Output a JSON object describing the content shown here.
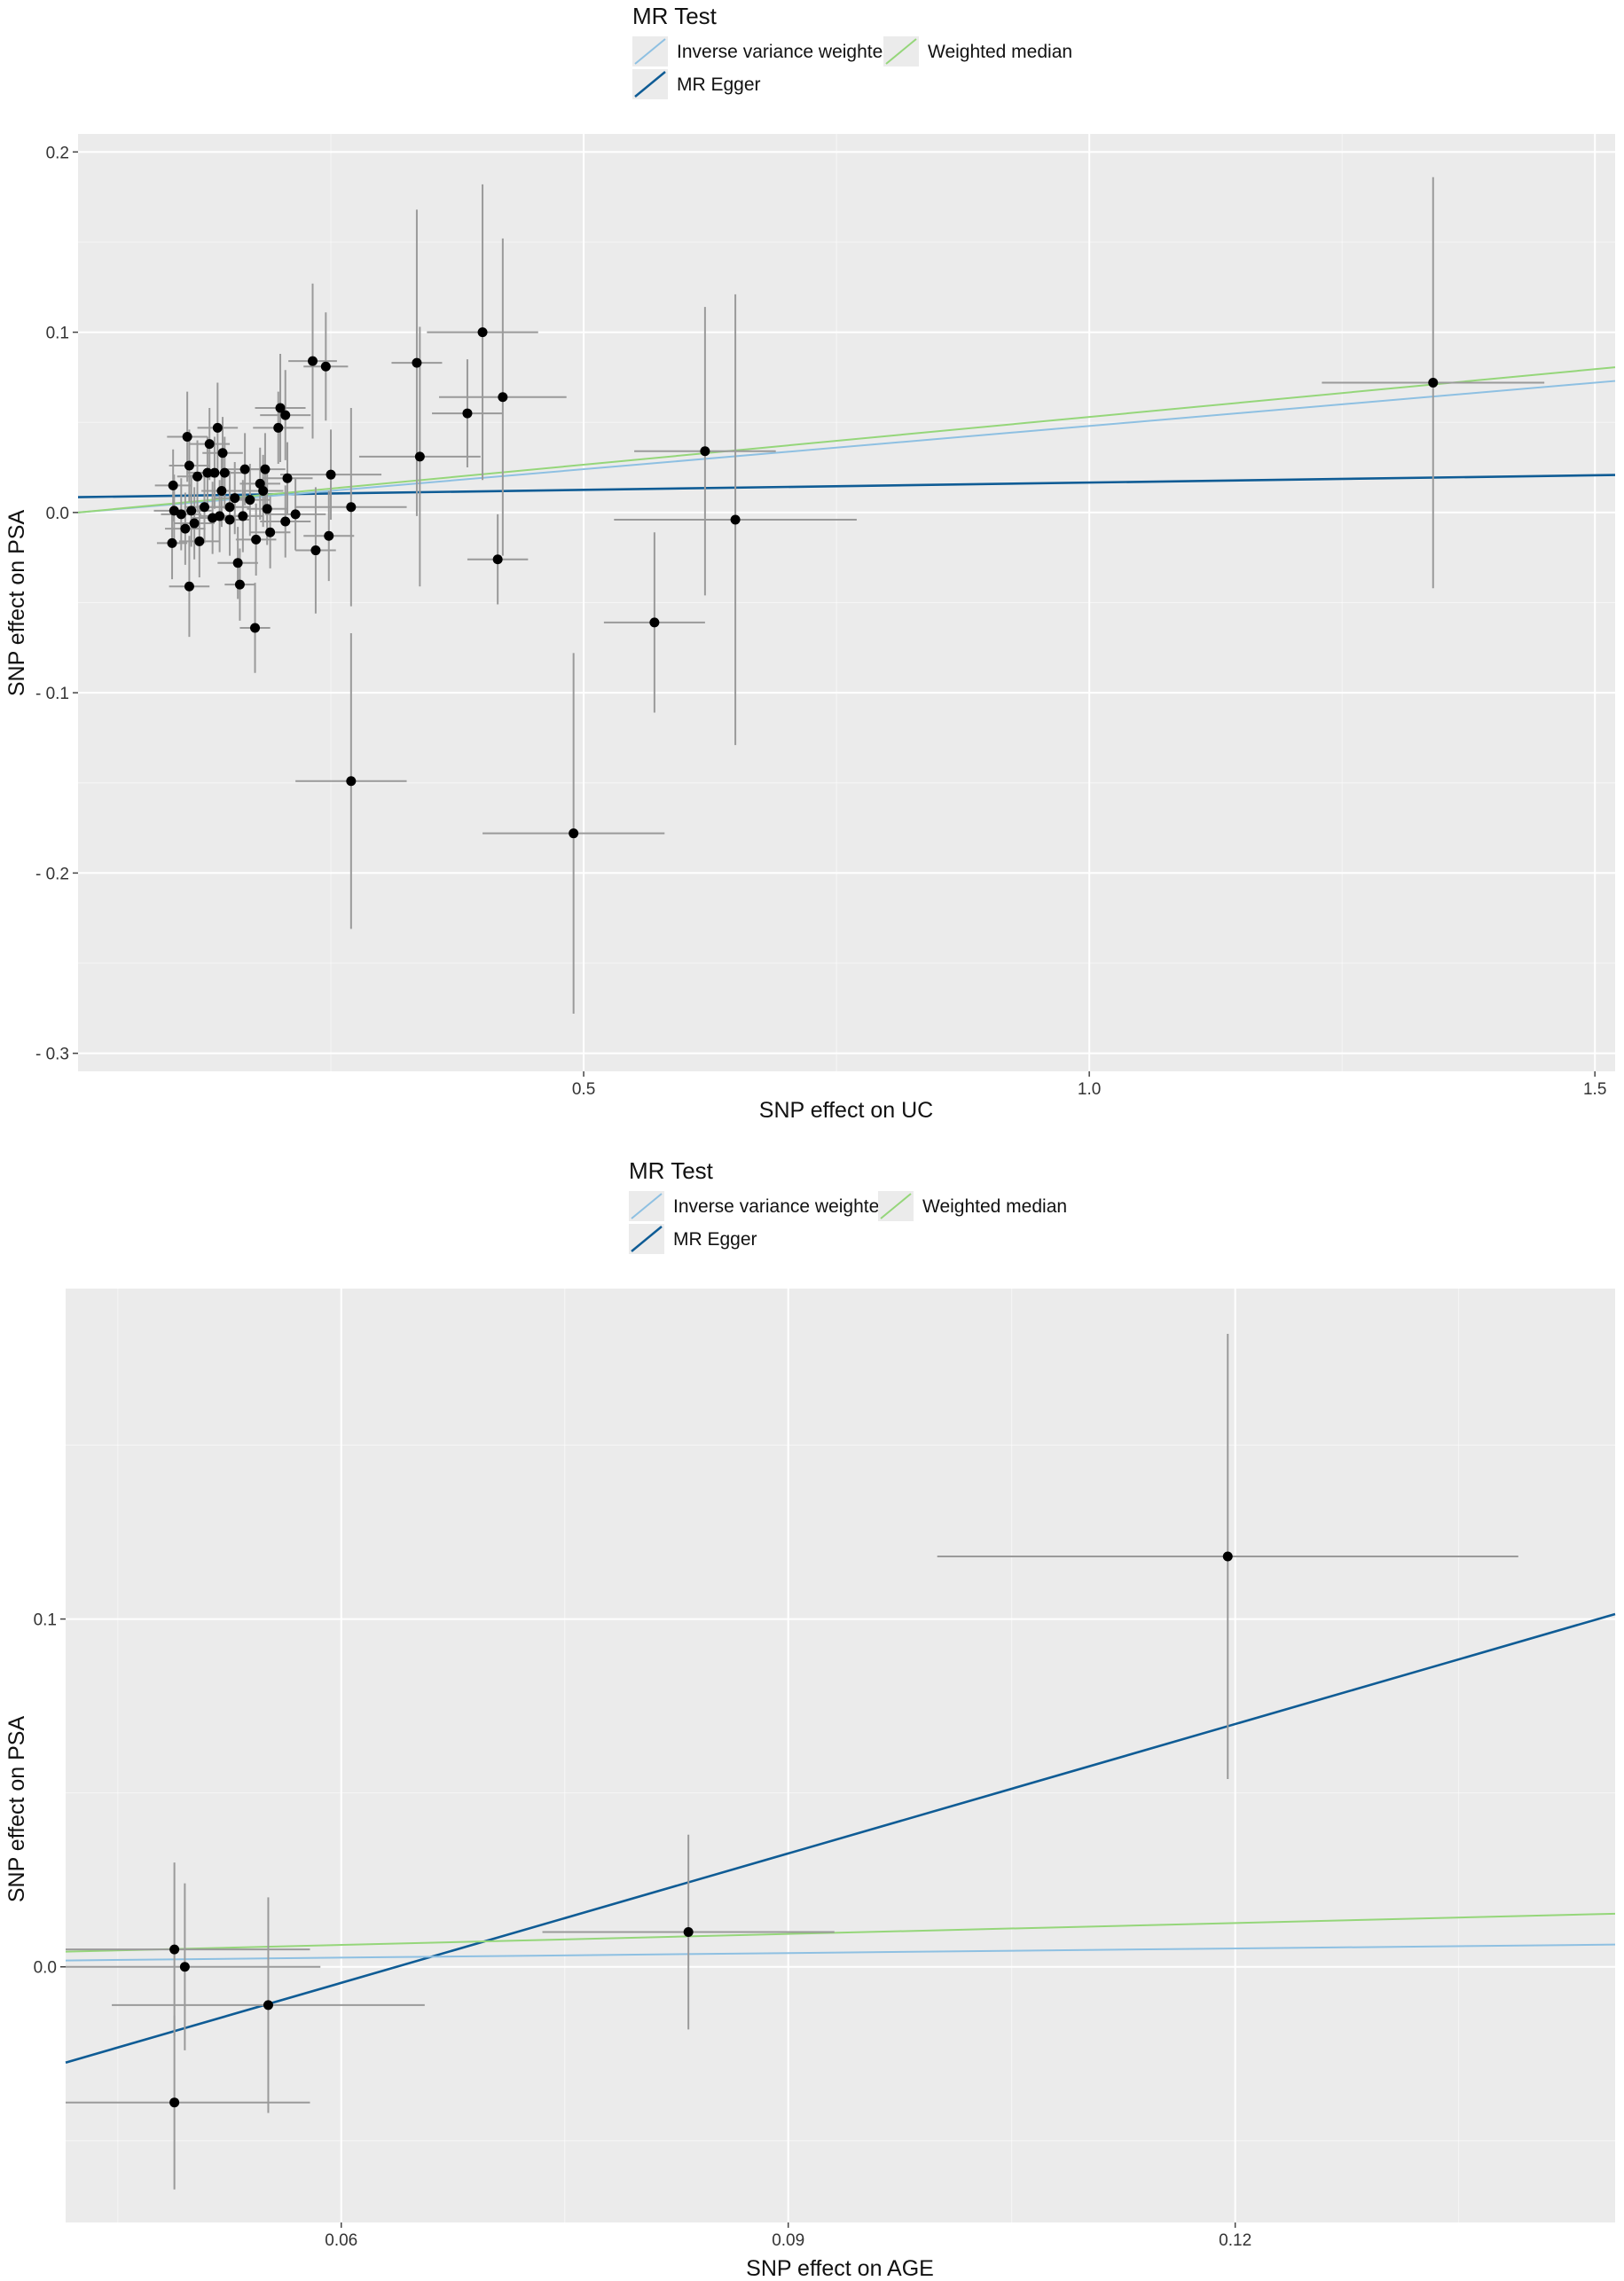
{
  "colors": {
    "ivw": "#8ec0e2",
    "egger": "#0f5c95",
    "wmedian": "#95d67a",
    "panel": "#ebebeb",
    "grid": "#ffffff",
    "bar": "#9a9a9a",
    "point": "#000000"
  },
  "chart_data": [
    {
      "type": "scatter",
      "title": "",
      "xlabel": "SNP effect on UC",
      "ylabel": "SNP effect on PSA",
      "xlim": [
        0.0,
        1.52
      ],
      "ylim": [
        -0.31,
        0.21
      ],
      "xticks": [
        0.5,
        1.0,
        1.5
      ],
      "xtick_labels": [
        "0.5",
        "1.0",
        "1.5"
      ],
      "yticks": [
        0.2,
        0.1,
        0.0,
        -0.1,
        -0.2,
        -0.3
      ],
      "ytick_labels": [
        "0.2",
        "0.1",
        "0.0",
        "- 0.1",
        "- 0.2",
        "- 0.3"
      ],
      "legend": {
        "title": "MR Test",
        "position": "top",
        "entries": [
          {
            "key": "ivw",
            "label": "Inverse variance weighted"
          },
          {
            "key": "wmedian",
            "label": "Weighted median"
          },
          {
            "key": "egger",
            "label": "MR Egger"
          }
        ]
      },
      "lines": [
        {
          "key": "ivw",
          "intercept": 0.0,
          "slope": 0.048
        },
        {
          "key": "wmedian",
          "intercept": 0.0,
          "slope": 0.053
        },
        {
          "key": "egger",
          "intercept": 0.0085,
          "slope": 0.0081
        }
      ],
      "points": [
        {
          "x": 1.34,
          "y": 0.072,
          "xe": 0.11,
          "ye": 0.114
        },
        {
          "x": 0.65,
          "y": -0.004,
          "xe": 0.12,
          "ye": 0.125
        },
        {
          "x": 0.62,
          "y": 0.034,
          "xe": 0.07,
          "ye": 0.08
        },
        {
          "x": 0.57,
          "y": -0.061,
          "xe": 0.05,
          "ye": 0.05
        },
        {
          "x": 0.49,
          "y": -0.178,
          "xe": 0.09,
          "ye": 0.1
        },
        {
          "x": 0.42,
          "y": 0.064,
          "xe": 0.063,
          "ye": 0.088
        },
        {
          "x": 0.4,
          "y": 0.1,
          "xe": 0.055,
          "ye": 0.082
        },
        {
          "x": 0.415,
          "y": -0.026,
          "xe": 0.03,
          "ye": 0.025
        },
        {
          "x": 0.385,
          "y": 0.055,
          "xe": 0.035,
          "ye": 0.03
        },
        {
          "x": 0.335,
          "y": 0.083,
          "xe": 0.025,
          "ye": 0.085
        },
        {
          "x": 0.338,
          "y": 0.031,
          "xe": 0.06,
          "ye": 0.072
        },
        {
          "x": 0.27,
          "y": -0.149,
          "xe": 0.055,
          "ye": 0.082
        },
        {
          "x": 0.27,
          "y": 0.003,
          "xe": 0.055,
          "ye": 0.055
        },
        {
          "x": 0.232,
          "y": 0.084,
          "xe": 0.024,
          "ye": 0.043
        },
        {
          "x": 0.245,
          "y": 0.081,
          "xe": 0.022,
          "ye": 0.03
        },
        {
          "x": 0.25,
          "y": 0.021,
          "xe": 0.05,
          "ye": 0.025
        },
        {
          "x": 0.248,
          "y": -0.013,
          "xe": 0.025,
          "ye": 0.025
        },
        {
          "x": 0.235,
          "y": -0.021,
          "xe": 0.02,
          "ye": 0.035
        },
        {
          "x": 0.215,
          "y": -0.001,
          "xe": 0.03,
          "ye": 0.02
        },
        {
          "x": 0.2,
          "y": 0.058,
          "xe": 0.025,
          "ye": 0.03
        },
        {
          "x": 0.205,
          "y": 0.054,
          "xe": 0.025,
          "ye": 0.025
        },
        {
          "x": 0.198,
          "y": 0.047,
          "xe": 0.025,
          "ye": 0.02
        },
        {
          "x": 0.207,
          "y": 0.019,
          "xe": 0.025,
          "ye": 0.02
        },
        {
          "x": 0.205,
          "y": -0.005,
          "xe": 0.025,
          "ye": 0.02
        },
        {
          "x": 0.185,
          "y": 0.024,
          "xe": 0.02,
          "ye": 0.02
        },
        {
          "x": 0.183,
          "y": 0.012,
          "xe": 0.02,
          "ye": 0.02
        },
        {
          "x": 0.187,
          "y": 0.002,
          "xe": 0.02,
          "ye": 0.02
        },
        {
          "x": 0.19,
          "y": -0.011,
          "xe": 0.02,
          "ye": 0.02
        },
        {
          "x": 0.175,
          "y": -0.064,
          "xe": 0.015,
          "ye": 0.025
        },
        {
          "x": 0.18,
          "y": 0.016,
          "xe": 0.02,
          "ye": 0.02
        },
        {
          "x": 0.176,
          "y": -0.015,
          "xe": 0.02,
          "ye": 0.02
        },
        {
          "x": 0.17,
          "y": 0.007,
          "xe": 0.02,
          "ye": 0.02
        },
        {
          "x": 0.165,
          "y": 0.024,
          "xe": 0.02,
          "ye": 0.02
        },
        {
          "x": 0.163,
          "y": -0.002,
          "xe": 0.02,
          "ye": 0.02
        },
        {
          "x": 0.16,
          "y": -0.04,
          "xe": 0.015,
          "ye": 0.02
        },
        {
          "x": 0.158,
          "y": -0.028,
          "xe": 0.02,
          "ye": 0.02
        },
        {
          "x": 0.155,
          "y": 0.008,
          "xe": 0.02,
          "ye": 0.02
        },
        {
          "x": 0.15,
          "y": 0.003,
          "xe": 0.02,
          "ye": 0.02
        },
        {
          "x": 0.15,
          "y": -0.004,
          "xe": 0.02,
          "ye": 0.02
        },
        {
          "x": 0.145,
          "y": 0.022,
          "xe": 0.02,
          "ye": 0.02
        },
        {
          "x": 0.143,
          "y": 0.033,
          "xe": 0.02,
          "ye": 0.02
        },
        {
          "x": 0.142,
          "y": 0.012,
          "xe": 0.02,
          "ye": 0.02
        },
        {
          "x": 0.14,
          "y": -0.002,
          "xe": 0.02,
          "ye": 0.02
        },
        {
          "x": 0.138,
          "y": 0.047,
          "xe": 0.02,
          "ye": 0.025
        },
        {
          "x": 0.135,
          "y": 0.022,
          "xe": 0.02,
          "ye": 0.02
        },
        {
          "x": 0.133,
          "y": -0.003,
          "xe": 0.02,
          "ye": 0.02
        },
        {
          "x": 0.13,
          "y": 0.038,
          "xe": 0.02,
          "ye": 0.02
        },
        {
          "x": 0.128,
          "y": 0.022,
          "xe": 0.02,
          "ye": 0.02
        },
        {
          "x": 0.125,
          "y": 0.003,
          "xe": 0.02,
          "ye": 0.02
        },
        {
          "x": 0.12,
          "y": -0.016,
          "xe": 0.02,
          "ye": 0.02
        },
        {
          "x": 0.118,
          "y": 0.02,
          "xe": 0.02,
          "ye": 0.02
        },
        {
          "x": 0.115,
          "y": -0.006,
          "xe": 0.02,
          "ye": 0.02
        },
        {
          "x": 0.112,
          "y": 0.001,
          "xe": 0.02,
          "ye": 0.02
        },
        {
          "x": 0.11,
          "y": 0.026,
          "xe": 0.02,
          "ye": 0.02
        },
        {
          "x": 0.108,
          "y": 0.042,
          "xe": 0.02,
          "ye": 0.025
        },
        {
          "x": 0.106,
          "y": -0.009,
          "xe": 0.02,
          "ye": 0.02
        },
        {
          "x": 0.11,
          "y": -0.041,
          "xe": 0.02,
          "ye": 0.028
        },
        {
          "x": 0.102,
          "y": -0.001,
          "xe": 0.02,
          "ye": 0.02
        },
        {
          "x": 0.095,
          "y": 0.001,
          "xe": 0.02,
          "ye": 0.02
        },
        {
          "x": 0.094,
          "y": 0.015,
          "xe": 0.018,
          "ye": 0.02
        },
        {
          "x": 0.093,
          "y": -0.017,
          "xe": 0.015,
          "ye": 0.02
        }
      ]
    },
    {
      "type": "scatter",
      "title": "",
      "xlabel": "SNP effect on AGE",
      "ylabel": "SNP effect on PSA",
      "xlim": [
        0.0415,
        0.1455
      ],
      "ylim": [
        -0.0735,
        0.195
      ],
      "xticks": [
        0.06,
        0.09,
        0.12
      ],
      "xtick_labels": [
        "0.06",
        "0.09",
        "0.12"
      ],
      "yticks": [
        0.1,
        0.0
      ],
      "ytick_labels": [
        "0.1",
        "0.0"
      ],
      "legend": {
        "title": "MR Test",
        "position": "top",
        "entries": [
          {
            "key": "ivw",
            "label": "Inverse variance weighted"
          },
          {
            "key": "wmedian",
            "label": "Weighted median"
          },
          {
            "key": "egger",
            "label": "MR Egger"
          }
        ]
      },
      "lines": [
        {
          "key": "ivw",
          "intercept": 0.0,
          "slope": 0.044
        },
        {
          "key": "wmedian",
          "intercept": 0.0,
          "slope": 0.105
        },
        {
          "key": "egger",
          "intercept": -0.079,
          "slope": 1.24
        }
      ],
      "points": [
        {
          "x": 0.1195,
          "y": 0.118,
          "xe": 0.0195,
          "ye": 0.064
        },
        {
          "x": 0.0833,
          "y": 0.01,
          "xe": 0.0098,
          "ye": 0.028
        },
        {
          "x": 0.0551,
          "y": -0.011,
          "xe": 0.0105,
          "ye": 0.031
        },
        {
          "x": 0.0488,
          "y": 0.005,
          "xe": 0.0091,
          "ye": 0.025
        },
        {
          "x": 0.0495,
          "y": 0.0,
          "xe": 0.0091,
          "ye": 0.024
        },
        {
          "x": 0.0488,
          "y": -0.039,
          "xe": 0.0091,
          "ye": 0.025
        }
      ]
    }
  ]
}
